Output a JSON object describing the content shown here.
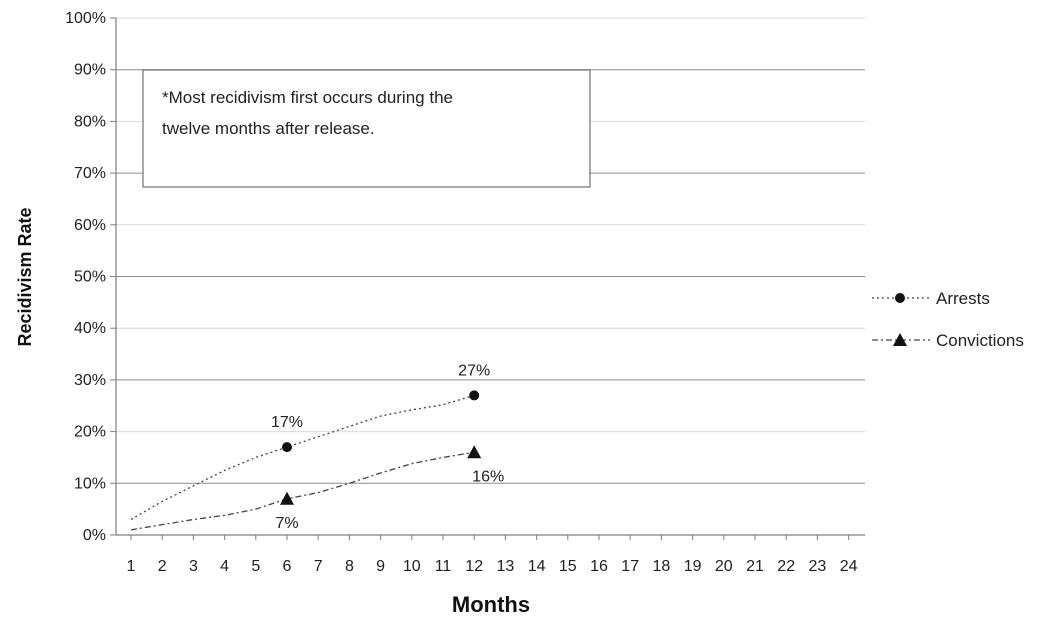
{
  "chart_data": {
    "type": "line",
    "x": [
      1,
      2,
      3,
      4,
      5,
      6,
      7,
      8,
      9,
      10,
      11,
      12
    ],
    "x_ticks": [
      "1",
      "2",
      "3",
      "4",
      "5",
      "6",
      "7",
      "8",
      "9",
      "10",
      "11",
      "12",
      "13",
      "14",
      "15",
      "16",
      "17",
      "18",
      "19",
      "20",
      "21",
      "22",
      "23",
      "24"
    ],
    "y_ticks": [
      "0%",
      "10%",
      "20%",
      "30%",
      "40%",
      "50%",
      "60%",
      "70%",
      "80%",
      "90%",
      "100%"
    ],
    "xlabel": "Months",
    "ylabel": "Recidivism Rate",
    "xlim": [
      1,
      24
    ],
    "ylim": [
      0,
      100
    ],
    "grid": true,
    "legend_position": "right",
    "series": [
      {
        "name": "Arrests",
        "marker": "circle",
        "line_style": "dotted",
        "values": [
          3,
          6.5,
          9.5,
          12.5,
          15,
          17,
          19,
          21,
          23,
          24.2,
          25.2,
          27
        ]
      },
      {
        "name": "Convictions",
        "marker": "triangle",
        "line_style": "dash-dot",
        "values": [
          1,
          2,
          3,
          3.8,
          5,
          7,
          8.2,
          10,
          12,
          13.8,
          15,
          16
        ]
      }
    ],
    "data_labels": [
      {
        "series": "Arrests",
        "x": 6,
        "y": 17,
        "text": "17%",
        "position": "above"
      },
      {
        "series": "Arrests",
        "x": 12,
        "y": 27,
        "text": "27%",
        "position": "above"
      },
      {
        "series": "Convictions",
        "x": 6,
        "y": 7,
        "text": "7%",
        "position": "below"
      },
      {
        "series": "Convictions",
        "x": 12,
        "y": 16,
        "text": "16%",
        "position": "below"
      }
    ],
    "annotation": {
      "lines": [
        "*Most recidivism first occurs during the",
        "twelve months after release."
      ]
    },
    "colors": {
      "line": "#000000",
      "grid": "#bfbfbf",
      "axis": "#7f7f7f"
    }
  }
}
